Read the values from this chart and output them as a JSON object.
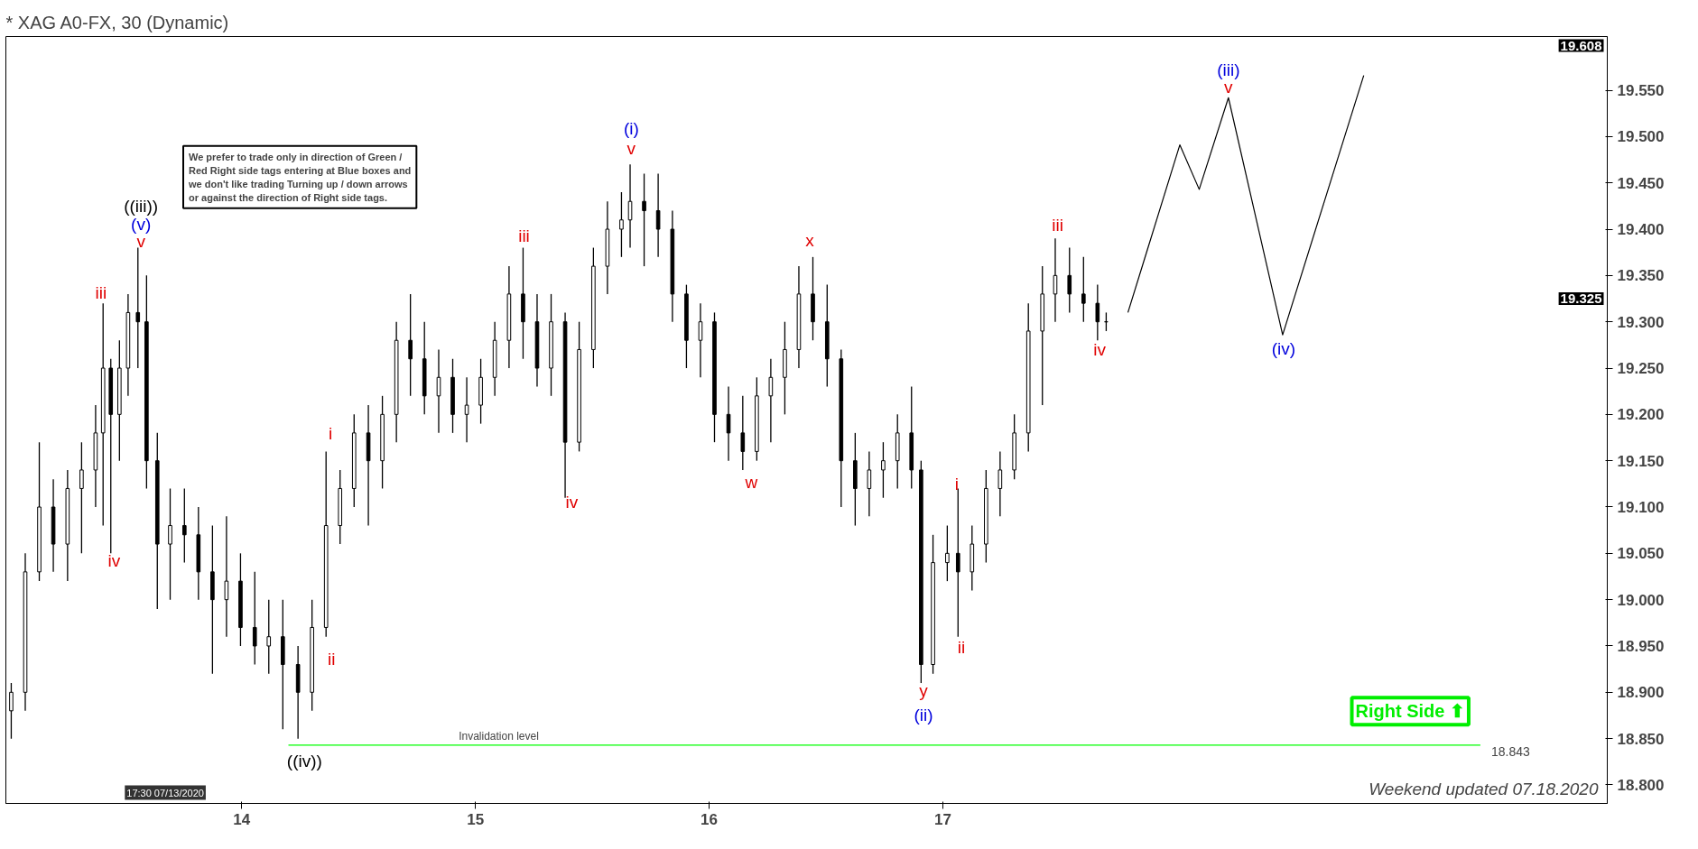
{
  "chart_data": {
    "type": "candlestick",
    "title": "* XAG A0-FX, 30 (Dynamic)",
    "x": [
      13.014,
      13.074,
      13.134,
      13.194,
      13.255,
      13.315,
      13.375,
      13.407,
      13.44,
      13.477,
      13.514,
      13.556,
      13.593,
      13.639,
      13.694,
      13.755,
      13.815,
      13.875,
      13.935,
      13.995,
      14.056,
      14.116,
      14.176,
      14.241,
      14.301,
      14.361,
      14.421,
      14.481,
      14.542,
      14.602,
      14.662,
      14.722,
      14.782,
      14.843,
      14.903,
      14.963,
      15.023,
      15.083,
      15.144,
      15.204,
      15.264,
      15.324,
      15.384,
      15.444,
      15.505,
      15.565,
      15.625,
      15.662,
      15.722,
      15.782,
      15.843,
      15.903,
      15.963,
      16.023,
      16.083,
      16.144,
      16.204,
      16.264,
      16.324,
      16.384,
      16.444,
      16.505,
      16.565,
      16.625,
      16.685,
      16.745,
      16.806,
      16.866,
      16.907,
      16.958,
      17.019,
      17.065,
      17.125,
      17.185,
      17.245,
      17.306,
      17.366,
      17.426,
      17.481,
      17.542,
      17.602,
      17.662,
      17.699
    ],
    "ohlc": [
      [
        18.88,
        18.91,
        18.85,
        18.9
      ],
      [
        18.9,
        19.05,
        18.88,
        19.03
      ],
      [
        19.03,
        19.17,
        19.02,
        19.1
      ],
      [
        19.1,
        19.13,
        19.03,
        19.06
      ],
      [
        19.06,
        19.14,
        19.02,
        19.12
      ],
      [
        19.12,
        19.17,
        19.05,
        19.14
      ],
      [
        19.14,
        19.21,
        19.1,
        19.18
      ],
      [
        19.18,
        19.32,
        19.08,
        19.25
      ],
      [
        19.25,
        19.26,
        19.05,
        19.2
      ],
      [
        19.2,
        19.28,
        19.15,
        19.25
      ],
      [
        19.25,
        19.33,
        19.22,
        19.31
      ],
      [
        19.31,
        19.38,
        19.25,
        19.3
      ],
      [
        19.3,
        19.35,
        19.12,
        19.15
      ],
      [
        19.15,
        19.18,
        18.99,
        19.06
      ],
      [
        19.06,
        19.12,
        19.0,
        19.08
      ],
      [
        19.08,
        19.12,
        19.04,
        19.07
      ],
      [
        19.07,
        19.1,
        19.0,
        19.03
      ],
      [
        19.03,
        19.08,
        18.92,
        19.0
      ],
      [
        19.0,
        19.09,
        18.96,
        19.02
      ],
      [
        19.02,
        19.05,
        18.95,
        18.97
      ],
      [
        18.97,
        19.03,
        18.93,
        18.95
      ],
      [
        18.95,
        19.0,
        18.92,
        18.96
      ],
      [
        18.96,
        19.0,
        18.86,
        18.93
      ],
      [
        18.93,
        18.95,
        18.85,
        18.9
      ],
      [
        18.9,
        19.0,
        18.88,
        18.97
      ],
      [
        18.97,
        19.16,
        18.96,
        19.08
      ],
      [
        19.08,
        19.14,
        19.06,
        19.12
      ],
      [
        19.12,
        19.2,
        19.1,
        19.18
      ],
      [
        19.18,
        19.21,
        19.08,
        19.15
      ],
      [
        19.15,
        19.22,
        19.12,
        19.2
      ],
      [
        19.2,
        19.3,
        19.17,
        19.28
      ],
      [
        19.28,
        19.33,
        19.22,
        19.26
      ],
      [
        19.26,
        19.3,
        19.2,
        19.22
      ],
      [
        19.22,
        19.27,
        19.18,
        19.24
      ],
      [
        19.24,
        19.26,
        19.18,
        19.2
      ],
      [
        19.2,
        19.24,
        19.17,
        19.21
      ],
      [
        19.21,
        19.26,
        19.19,
        19.24
      ],
      [
        19.24,
        19.3,
        19.22,
        19.28
      ],
      [
        19.28,
        19.36,
        19.25,
        19.33
      ],
      [
        19.33,
        19.38,
        19.26,
        19.3
      ],
      [
        19.3,
        19.33,
        19.23,
        19.25
      ],
      [
        19.25,
        19.33,
        19.22,
        19.3
      ],
      [
        19.3,
        19.31,
        19.11,
        19.17
      ],
      [
        19.17,
        19.3,
        19.16,
        19.27
      ],
      [
        19.27,
        19.38,
        19.25,
        19.36
      ],
      [
        19.36,
        19.43,
        19.33,
        19.4
      ],
      [
        19.4,
        19.44,
        19.37,
        19.41
      ],
      [
        19.41,
        19.47,
        19.38,
        19.43
      ],
      [
        19.43,
        19.46,
        19.36,
        19.42
      ],
      [
        19.42,
        19.46,
        19.37,
        19.4
      ],
      [
        19.4,
        19.42,
        19.3,
        19.33
      ],
      [
        19.33,
        19.34,
        19.25,
        19.28
      ],
      [
        19.28,
        19.32,
        19.24,
        19.3
      ],
      [
        19.3,
        19.31,
        19.17,
        19.2
      ],
      [
        19.2,
        19.23,
        19.15,
        19.18
      ],
      [
        19.18,
        19.22,
        19.14,
        19.16
      ],
      [
        19.16,
        19.24,
        19.15,
        19.22
      ],
      [
        19.22,
        19.26,
        19.17,
        19.24
      ],
      [
        19.24,
        19.3,
        19.2,
        19.27
      ],
      [
        19.27,
        19.36,
        19.25,
        19.33
      ],
      [
        19.33,
        19.37,
        19.28,
        19.3
      ],
      [
        19.3,
        19.34,
        19.23,
        19.26
      ],
      [
        19.26,
        19.27,
        19.1,
        19.15
      ],
      [
        19.15,
        19.18,
        19.08,
        19.12
      ],
      [
        19.12,
        19.16,
        19.09,
        19.14
      ],
      [
        19.14,
        19.17,
        19.11,
        19.15
      ],
      [
        19.15,
        19.2,
        19.12,
        19.18
      ],
      [
        19.18,
        19.23,
        19.12,
        19.14
      ],
      [
        19.14,
        19.15,
        18.91,
        18.93
      ],
      [
        18.93,
        19.07,
        18.92,
        19.04
      ],
      [
        19.04,
        19.08,
        19.02,
        19.05
      ],
      [
        19.05,
        19.12,
        18.96,
        19.03
      ],
      [
        19.03,
        19.08,
        19.01,
        19.06
      ],
      [
        19.06,
        19.14,
        19.04,
        19.12
      ],
      [
        19.12,
        19.16,
        19.09,
        19.14
      ],
      [
        19.14,
        19.2,
        19.13,
        19.18
      ],
      [
        19.18,
        19.32,
        19.16,
        19.29
      ],
      [
        19.29,
        19.36,
        19.21,
        19.33
      ],
      [
        19.33,
        19.39,
        19.3,
        19.35
      ],
      [
        19.35,
        19.38,
        19.31,
        19.33
      ],
      [
        19.33,
        19.37,
        19.3,
        19.32
      ],
      [
        19.32,
        19.34,
        19.28,
        19.3
      ],
      [
        19.3,
        19.31,
        19.29,
        19.3
      ]
    ],
    "color": "#000000",
    "series": [
      {
        "type": "line",
        "color": "#000000",
        "x": [
          17.792,
          18.014,
          18.097,
          18.222,
          18.454,
          18.801
        ],
        "values": [
          19.31,
          19.491,
          19.443,
          19.542,
          19.286,
          19.566
        ]
      }
    ],
    "xlim": [
      12.991,
      19.843
    ],
    "xticks": [
      14,
      15,
      16,
      17
    ],
    "ylim": [
      18.78,
      19.608
    ],
    "yticks": [
      {
        "value": 18.8,
        "label": "18.800"
      },
      {
        "value": 18.85,
        "label": "18.850"
      },
      {
        "value": 18.9,
        "label": "18.900"
      },
      {
        "value": 18.95,
        "label": "18.950"
      },
      {
        "value": 19.0,
        "label": "19.000"
      },
      {
        "value": 19.05,
        "label": "19.050"
      },
      {
        "value": 19.1,
        "label": "19.100"
      },
      {
        "value": 19.15,
        "label": "19.150"
      },
      {
        "value": 19.2,
        "label": "19.200"
      },
      {
        "value": 19.25,
        "label": "19.250"
      },
      {
        "value": 19.3,
        "label": "19.300"
      },
      {
        "value": 19.35,
        "label": "19.350"
      },
      {
        "value": 19.4,
        "label": "19.400"
      },
      {
        "value": 19.45,
        "label": "19.450"
      },
      {
        "value": 19.5,
        "label": "19.500"
      },
      {
        "value": 19.55,
        "label": "19.550"
      }
    ],
    "grid": false,
    "ref_lines": [
      {
        "axis": "y",
        "value": 18.843,
        "label": "Invalidation level",
        "color": "#00ff00"
      }
    ],
    "annotations": [
      "We prefer to trade only in direction of Green / Red Right side tags entering at Blue boxes and we don't like trading Turning up / down arrows or against the direction of Right side tags.",
      "Right Side ⬆",
      "17:30 07/13/2020",
      "Weekend updated 07.18.2020",
      "18.843",
      "iii",
      "iv",
      "((iii))",
      "(v)",
      "v",
      "i",
      "ii",
      "((iv))",
      "iii",
      "iv",
      "(i)",
      "v",
      "w",
      "x",
      "y",
      "(ii)",
      "i",
      "ii",
      "iii",
      "iv",
      "(iii)",
      "v",
      "(iv)",
      "19.325",
      "19.608"
    ]
  }
}
